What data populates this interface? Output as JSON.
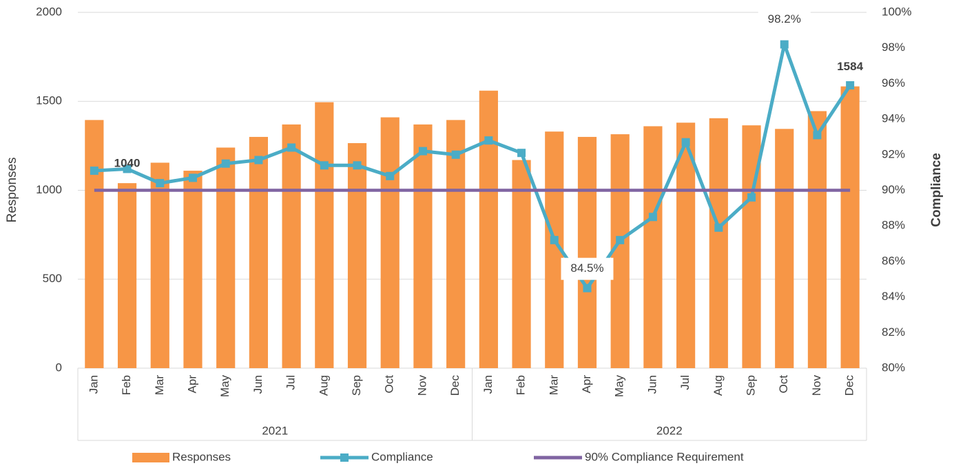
{
  "chart_data": {
    "type": "bar_line",
    "categories": [
      "Jan",
      "Feb",
      "Mar",
      "Apr",
      "May",
      "Jun",
      "Jul",
      "Aug",
      "Sep",
      "Oct",
      "Nov",
      "Dec",
      "Jan",
      "Feb",
      "Mar",
      "Apr",
      "May",
      "Jun",
      "Jul",
      "Aug",
      "Sep",
      "Oct",
      "Nov",
      "Dec"
    ],
    "category_groups": [
      {
        "label": "2021",
        "span": 12
      },
      {
        "label": "2022",
        "span": 12
      }
    ],
    "y_label": "Responses",
    "y2_label": "Compliance",
    "ylim": [
      0,
      2000
    ],
    "yticks": [
      0,
      500,
      1000,
      1500,
      2000
    ],
    "y2lim": [
      80,
      100
    ],
    "y2ticks": [
      {
        "value": 80,
        "label": "80%"
      },
      {
        "value": 82,
        "label": "82%"
      },
      {
        "value": 84,
        "label": "84%"
      },
      {
        "value": 86,
        "label": "86%"
      },
      {
        "value": 88,
        "label": "88%"
      },
      {
        "value": 90,
        "label": "90%"
      },
      {
        "value": 92,
        "label": "92%"
      },
      {
        "value": 94,
        "label": "94%"
      },
      {
        "value": 96,
        "label": "96%"
      },
      {
        "value": 98,
        "label": "98%"
      },
      {
        "value": 100,
        "label": "100%"
      }
    ],
    "grid": true,
    "legend": "bottom",
    "series": [
      {
        "name": "Responses",
        "type": "bar",
        "color": "#F79646",
        "values": [
          1395,
          1040,
          1155,
          1110,
          1240,
          1300,
          1370,
          1495,
          1265,
          1410,
          1370,
          1395,
          1560,
          1170,
          1330,
          1300,
          1315,
          1360,
          1380,
          1405,
          1365,
          1345,
          1445,
          1584
        ],
        "value_labels": [
          null,
          "1040",
          null,
          null,
          null,
          null,
          null,
          null,
          null,
          null,
          null,
          null,
          null,
          null,
          null,
          null,
          null,
          null,
          null,
          null,
          null,
          null,
          null,
          "1584"
        ]
      },
      {
        "name": "Compliance",
        "type": "line",
        "axis": "y2",
        "color": "#4BACC6",
        "marker": "square",
        "values": [
          91.1,
          91.2,
          90.4,
          90.7,
          91.5,
          91.7,
          92.4,
          91.4,
          91.4,
          90.8,
          92.2,
          92.0,
          92.8,
          92.1,
          87.2,
          84.5,
          87.2,
          88.5,
          92.7,
          87.9,
          89.6,
          98.2,
          93.1,
          95.9
        ],
        "value_labels": [
          null,
          null,
          null,
          null,
          null,
          null,
          null,
          null,
          null,
          null,
          null,
          null,
          null,
          null,
          null,
          "84.5%",
          null,
          null,
          null,
          null,
          null,
          "98.2%",
          null,
          null
        ]
      },
      {
        "name": "90% Compliance Requirement",
        "type": "line",
        "axis": "y2",
        "color": "#8064A2",
        "values": [
          90,
          90,
          90,
          90,
          90,
          90,
          90,
          90,
          90,
          90,
          90,
          90,
          90,
          90,
          90,
          90,
          90,
          90,
          90,
          90,
          90,
          90,
          90,
          90
        ]
      }
    ]
  }
}
